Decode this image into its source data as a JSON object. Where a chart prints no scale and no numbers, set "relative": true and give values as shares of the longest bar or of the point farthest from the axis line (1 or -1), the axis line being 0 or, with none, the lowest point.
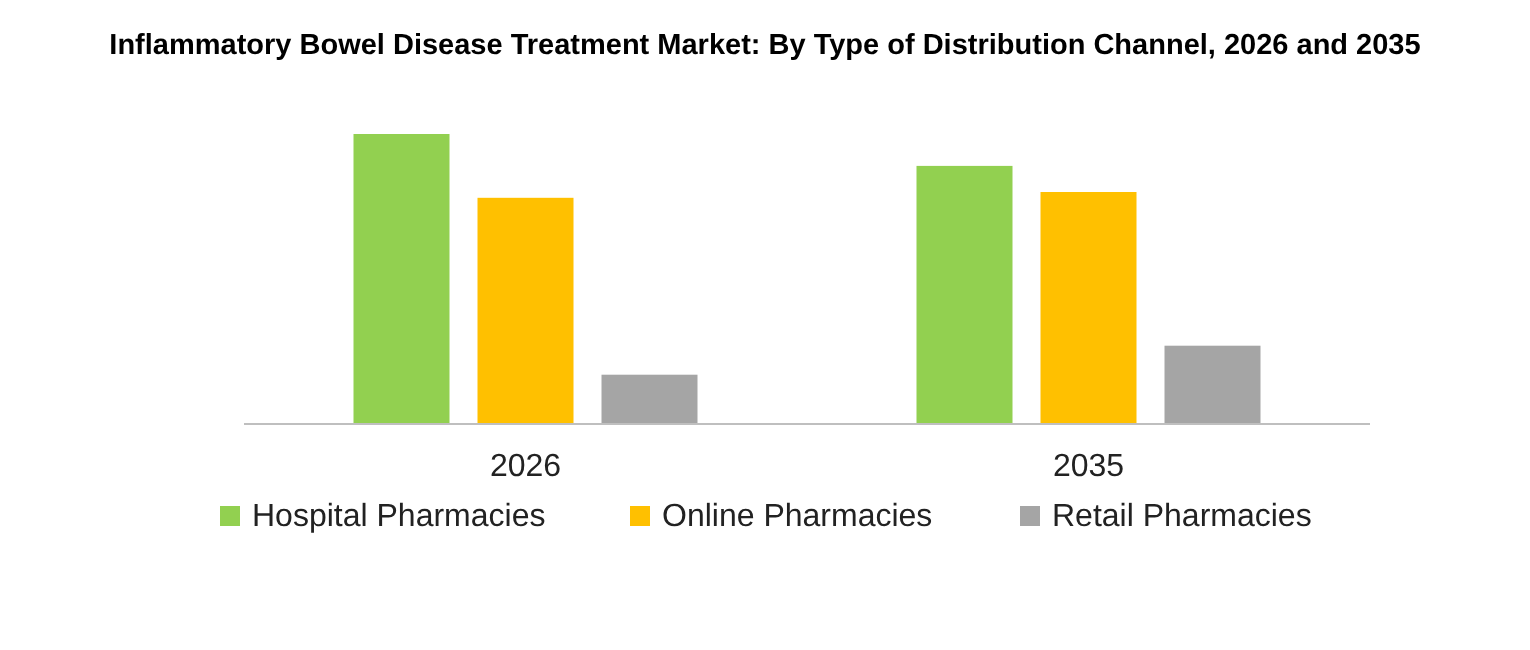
{
  "chart_data": {
    "type": "bar",
    "title": "Inflammatory Bowel Disease Treatment Market: By Type of Distribution Channel, 2026 and 2035",
    "relative": true,
    "categories": [
      "2026",
      "2035"
    ],
    "legend": "bottom",
    "series": [
      {
        "name": "Hospital Pharmacies",
        "color": "#92d050",
        "values": [
          1,
          0.89
        ]
      },
      {
        "name": "Online Pharmacies",
        "color": "#ffc000",
        "values": [
          0.78,
          0.8
        ]
      },
      {
        "name": "Retail Pharmacies",
        "color": "#a5a5a5",
        "values": [
          0.17,
          0.27
        ]
      }
    ]
  }
}
